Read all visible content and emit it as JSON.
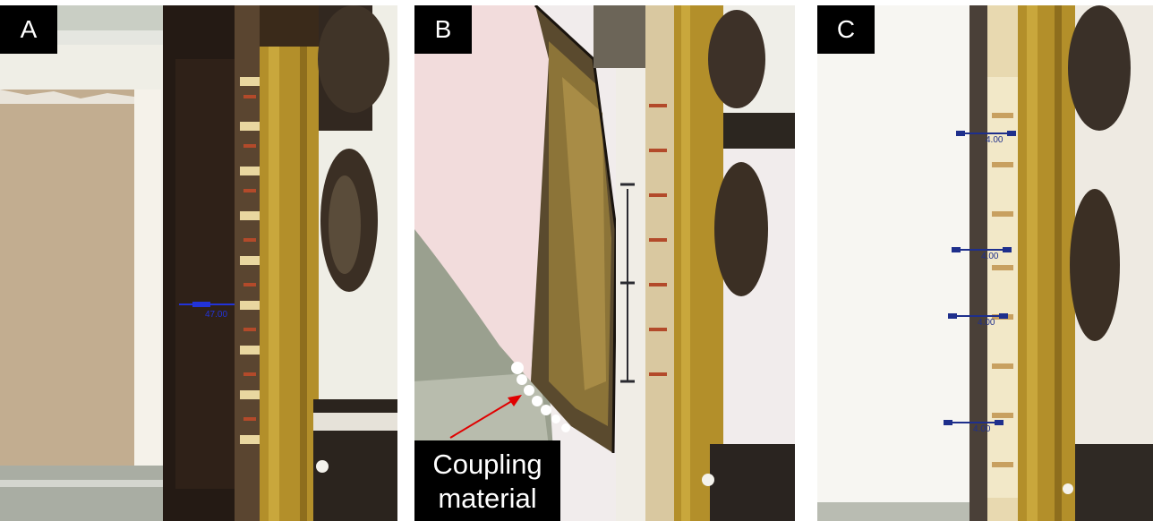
{
  "panels": {
    "a": {
      "letter": "A",
      "measurement": "47.00"
    },
    "b": {
      "letter": "B",
      "annotation": "Coupling\nmaterial"
    },
    "c": {
      "letter": "C",
      "measurements": [
        "4.00",
        "4.00",
        "4.00",
        "4.00"
      ]
    }
  },
  "colors": {
    "label_bg": "#000000",
    "label_text": "#ffffff",
    "measure_a": "#2233d8",
    "measure_c": "#1e2f8c",
    "arrow": "#e00000",
    "ruler": "#b8962e"
  }
}
